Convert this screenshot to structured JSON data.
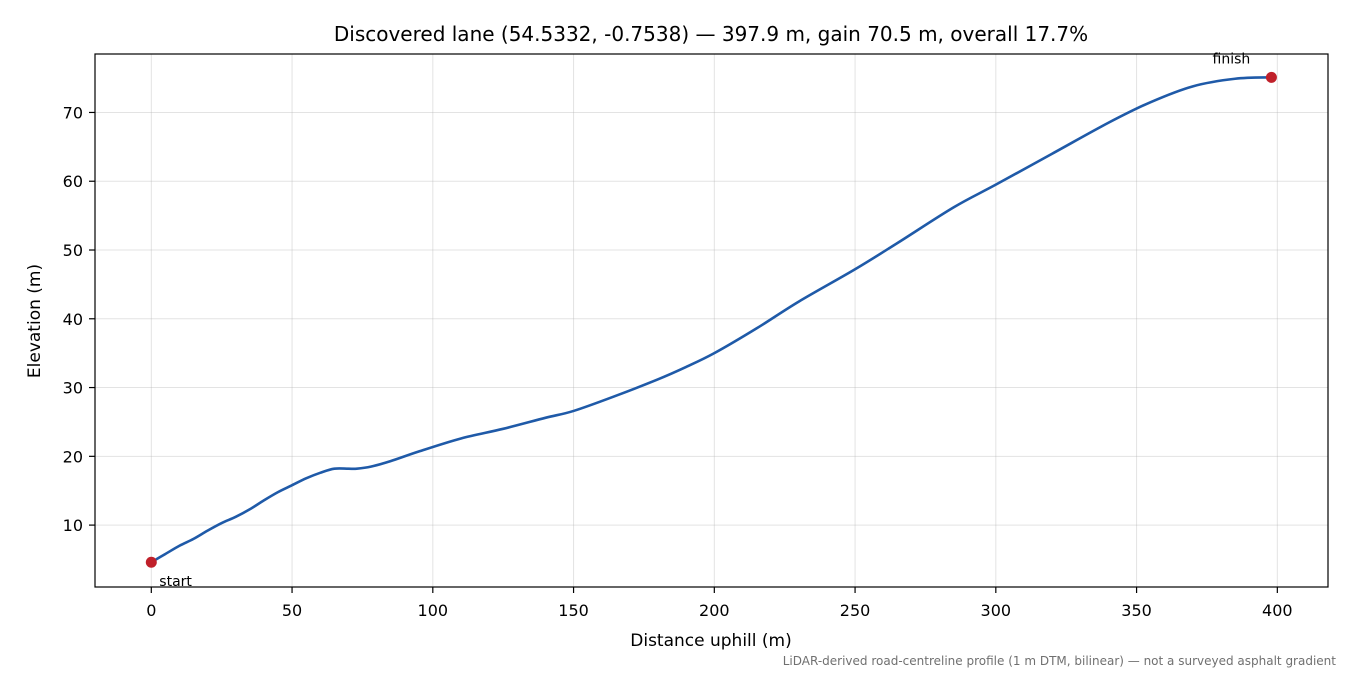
{
  "chart_data": {
    "type": "line",
    "title": "Discovered lane (54.5332, -0.7538) — 397.9 m, gain 70.5 m, overall 17.7%",
    "xlabel": "Distance uphill (m)",
    "ylabel": "Elevation (m)",
    "xlim": [
      -20,
      418
    ],
    "ylim": [
      1,
      78.5
    ],
    "xticks": [
      0,
      50,
      100,
      150,
      200,
      250,
      300,
      350,
      400
    ],
    "yticks": [
      10,
      20,
      30,
      40,
      50,
      60,
      70
    ],
    "grid": true,
    "line_color": "#1f5aa8",
    "marker_color": "#c0202a",
    "series": [
      {
        "x": [
          0,
          5,
          10,
          15,
          20,
          25,
          30,
          35,
          40,
          45,
          50,
          55,
          60,
          65,
          70,
          73,
          78,
          85,
          95,
          110,
          125,
          140,
          150,
          165,
          180,
          190,
          200,
          215,
          230,
          250,
          265,
          285,
          300,
          320,
          340,
          355,
          370,
          385,
          397.9
        ],
        "y": [
          4.6,
          5.8,
          7.0,
          8.0,
          9.2,
          10.3,
          11.2,
          12.3,
          13.6,
          14.8,
          15.8,
          16.8,
          17.6,
          18.2,
          18.2,
          18.2,
          18.5,
          19.3,
          20.7,
          22.6,
          24.0,
          25.6,
          26.6,
          28.8,
          31.2,
          33.0,
          35.0,
          38.6,
          42.5,
          47.2,
          51.0,
          56.2,
          59.5,
          64.0,
          68.5,
          71.5,
          73.8,
          74.9,
          75.1
        ]
      }
    ],
    "annotations": [
      {
        "text": "start",
        "x": 0,
        "y": 4.6
      },
      {
        "text": "finish",
        "x": 397.9,
        "y": 75.1
      }
    ],
    "footnote": "LiDAR-derived road-centreline profile (1 m DTM, bilinear) — not a surveyed asphalt gradient"
  }
}
